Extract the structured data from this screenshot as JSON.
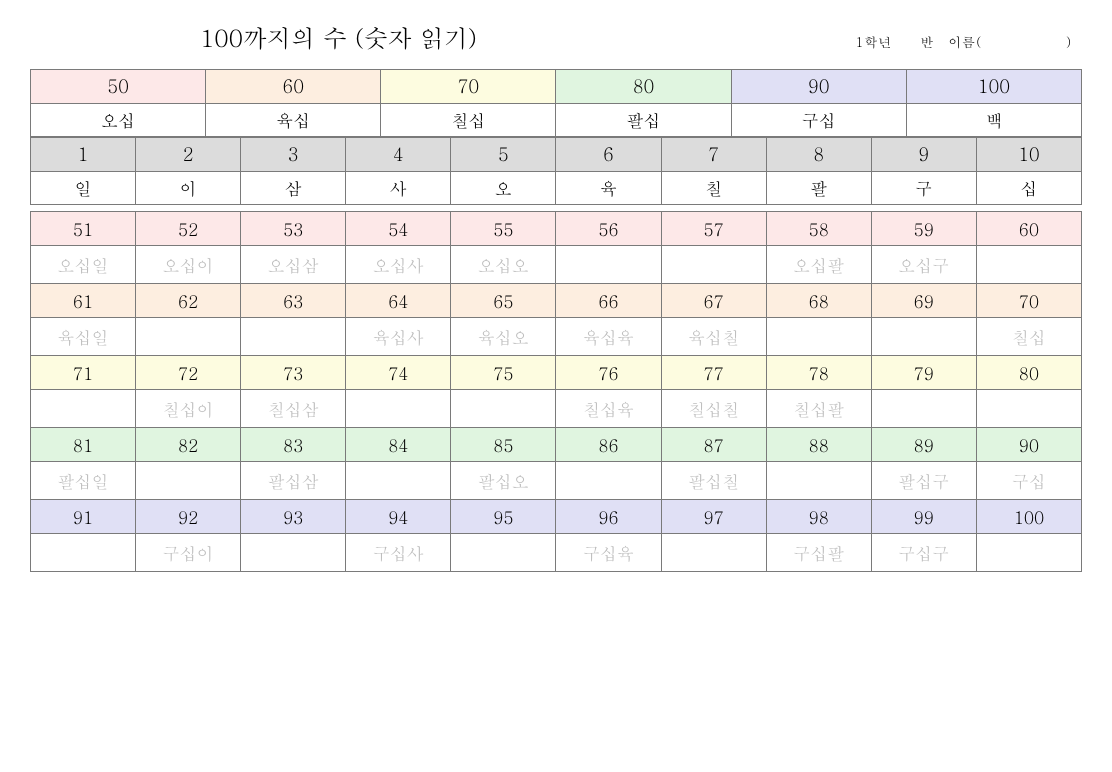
{
  "title": "100까지의 수 (숫자 읽기)",
  "meta": "1학년　　반　이름(　　　　　　)",
  "colors": {
    "pink": "#fde8e8",
    "peach": "#fdeee0",
    "yellow": "#fdfce0",
    "green": "#e0f5e0",
    "lavender": "#e0e0f5",
    "gray": "#dcdcdc",
    "white": "#ffffff",
    "faded": "#bdbdbd"
  },
  "tens": {
    "nums": [
      "50",
      "60",
      "70",
      "80",
      "90",
      "100"
    ],
    "words": [
      "오십",
      "육십",
      "칠십",
      "팔십",
      "구십",
      "백"
    ],
    "colors": [
      "pink",
      "peach",
      "yellow",
      "green",
      "lavender",
      "lavender"
    ]
  },
  "ones": {
    "nums": [
      "1",
      "2",
      "3",
      "4",
      "5",
      "6",
      "7",
      "8",
      "9",
      "10"
    ],
    "words": [
      "일",
      "이",
      "삼",
      "사",
      "오",
      "육",
      "칠",
      "팔",
      "구",
      "십"
    ]
  },
  "grid": [
    {
      "color": "pink",
      "nums": [
        "51",
        "52",
        "53",
        "54",
        "55",
        "56",
        "57",
        "58",
        "59",
        "60"
      ],
      "words": [
        "오십일",
        "오십이",
        "오십삼",
        "오십사",
        "오십오",
        "",
        "",
        "오십팔",
        "오십구",
        ""
      ]
    },
    {
      "color": "peach",
      "nums": [
        "61",
        "62",
        "63",
        "64",
        "65",
        "66",
        "67",
        "68",
        "69",
        "70"
      ],
      "words": [
        "육십일",
        "",
        "",
        "육십사",
        "육십오",
        "육십육",
        "육십칠",
        "",
        "",
        "칠십"
      ]
    },
    {
      "color": "yellow",
      "nums": [
        "71",
        "72",
        "73",
        "74",
        "75",
        "76",
        "77",
        "78",
        "79",
        "80"
      ],
      "words": [
        "",
        "칠십이",
        "칠십삼",
        "",
        "",
        "칠십육",
        "칠십칠",
        "칠십팔",
        "",
        ""
      ]
    },
    {
      "color": "green",
      "nums": [
        "81",
        "82",
        "83",
        "84",
        "85",
        "86",
        "87",
        "88",
        "89",
        "90"
      ],
      "words": [
        "팔십일",
        "",
        "팔십삼",
        "",
        "팔십오",
        "",
        "팔십칠",
        "",
        "팔십구",
        "구십"
      ]
    },
    {
      "color": "lavender",
      "nums": [
        "91",
        "92",
        "93",
        "94",
        "95",
        "96",
        "97",
        "98",
        "99",
        "100"
      ],
      "words": [
        "",
        "구십이",
        "",
        "구십사",
        "",
        "구십육",
        "",
        "구십팔",
        "구십구",
        ""
      ]
    }
  ]
}
